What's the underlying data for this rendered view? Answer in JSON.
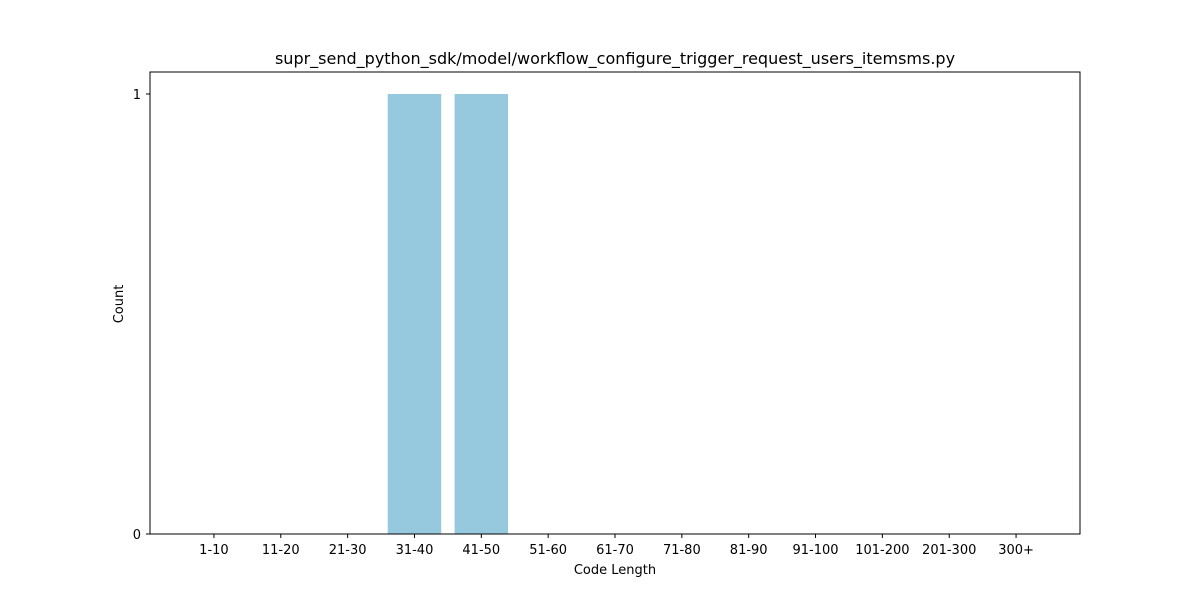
{
  "chart_data": {
    "type": "bar",
    "title": "supr_send_python_sdk/model/workflow_configure_trigger_request_users_itemsms.py",
    "xlabel": "Code Length",
    "ylabel": "Count",
    "categories": [
      "1-10",
      "11-20",
      "21-30",
      "31-40",
      "41-50",
      "51-60",
      "61-70",
      "71-80",
      "81-90",
      "91-100",
      "101-200",
      "201-300",
      "300+"
    ],
    "values": [
      0,
      0,
      0,
      1,
      1,
      0,
      0,
      0,
      0,
      0,
      0,
      0,
      0
    ],
    "ylim": [
      0,
      1.05
    ],
    "yticks": [
      0,
      1
    ],
    "grid": false,
    "legend": "none",
    "bar_color": "#96c9dd"
  }
}
